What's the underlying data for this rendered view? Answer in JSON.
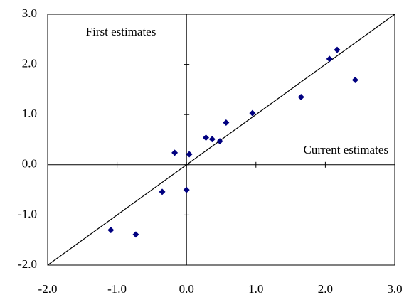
{
  "chart_data": {
    "type": "scatter",
    "annotations": [
      "First estimates",
      "Current estimates"
    ],
    "series": [
      {
        "color": "#000080",
        "x": [
          -1.09,
          -0.73,
          -0.35,
          0.0,
          -0.17,
          0.04,
          0.28,
          0.37,
          0.48,
          0.57,
          0.95,
          1.65,
          2.06,
          2.17,
          2.43
        ],
        "values": [
          -1.3,
          -1.39,
          -0.54,
          -0.5,
          0.24,
          0.21,
          0.54,
          0.51,
          0.47,
          0.84,
          1.03,
          1.35,
          2.11,
          2.29,
          1.69
        ]
      }
    ],
    "xlim": [
      -2,
      3
    ],
    "ylim": [
      -2,
      3
    ],
    "xticks": [
      {
        "value": -2,
        "label": "-2.0"
      },
      {
        "value": -1,
        "label": "-1.0"
      },
      {
        "value": 0,
        "label": "0.0"
      },
      {
        "value": 1,
        "label": "1.0"
      },
      {
        "value": 2,
        "label": "2.0"
      },
      {
        "value": 3,
        "label": "3.0"
      }
    ],
    "yticks": [
      {
        "value": -2,
        "label": "-2.0"
      },
      {
        "value": -1,
        "label": "-1.0"
      },
      {
        "value": 0,
        "label": "0.0"
      },
      {
        "value": 1,
        "label": "1.0"
      },
      {
        "value": 2,
        "label": "2.0"
      },
      {
        "value": 3,
        "label": "3.0"
      }
    ],
    "grid": false
  }
}
